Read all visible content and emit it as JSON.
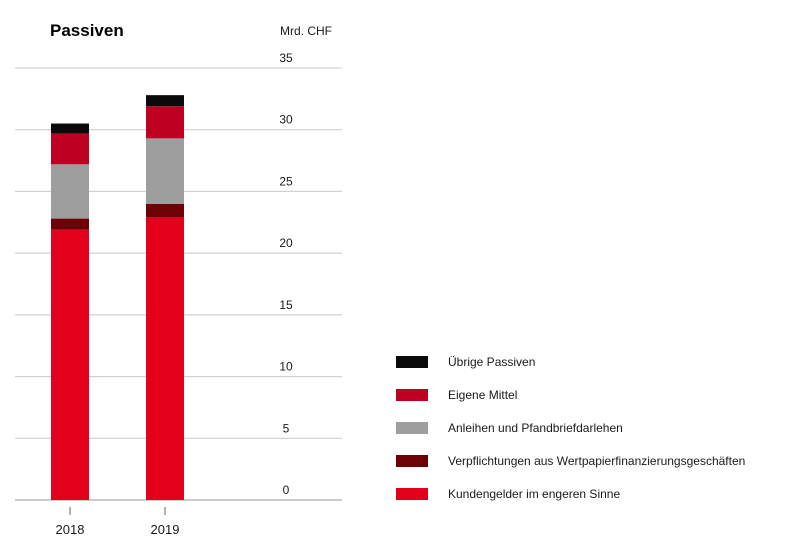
{
  "chart_data": {
    "type": "bar",
    "stacked": true,
    "title": "Passiven",
    "unit_label": "Mrd. CHF",
    "categories": [
      "2018",
      "2019"
    ],
    "ylim": [
      0,
      35
    ],
    "yticks": [
      "0",
      "5",
      "10",
      "15",
      "20",
      "25",
      "30",
      "35"
    ],
    "grid": true,
    "legend_position": "right",
    "series": [
      {
        "name": "Kundengelder im engeren Sinne",
        "color": "#e2001a",
        "values": [
          21.9,
          22.9
        ]
      },
      {
        "name": "Verpflichtungen aus Wertpapierfinanzierungsgeschäften",
        "color": "#6e0008",
        "values": [
          0.9,
          1.1
        ]
      },
      {
        "name": "Anleihen und Pfandbriefdarlehen",
        "color": "#9e9e9e",
        "values": [
          4.4,
          5.3
        ]
      },
      {
        "name": "Eigene Mittel",
        "color": "#be0022",
        "values": [
          2.5,
          2.6
        ]
      },
      {
        "name": "Übrige Passiven",
        "color": "#0a0a0a",
        "values": [
          0.8,
          0.9
        ]
      }
    ]
  }
}
